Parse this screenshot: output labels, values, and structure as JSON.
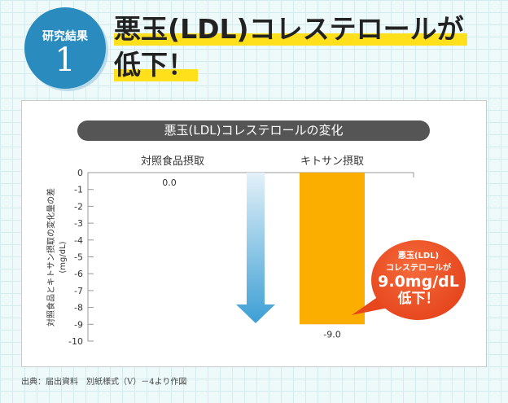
{
  "badge": {
    "label": "研究結果",
    "number": "1"
  },
  "headline": {
    "line1": "悪玉(LDL)コレステロールが",
    "line2": "低下！"
  },
  "chart_data": {
    "type": "bar",
    "title": "悪玉(LDL)コレステロールの変化",
    "ylabel": "対照食品とキトサン摂取の変化量の差",
    "yunit": "(mg/dL)",
    "categories": [
      "対照食品摂取",
      "キトサン摂取"
    ],
    "values": [
      0.0,
      -9.0
    ],
    "value_labels": [
      "0.0",
      "-9.0"
    ],
    "ylim": [
      -10,
      0
    ],
    "yticks": [
      "0",
      "-1",
      "-2",
      "-3",
      "-4",
      "-5",
      "-6",
      "-7",
      "-8",
      "-9",
      "-10"
    ],
    "bar_color": "#fbad00",
    "arrow_color": "#3d9fd4",
    "grid": false
  },
  "callout": {
    "line1": "悪玉(LDL)",
    "line2": "コレステロールが",
    "line3": "9.0mg/dL",
    "line4": "低下！",
    "color": "#e8461c"
  },
  "source": "出典：届出資料　別紙様式（V）－4より作図"
}
